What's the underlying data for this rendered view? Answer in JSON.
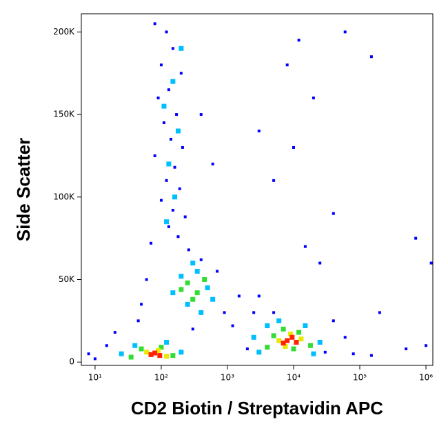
{
  "chart_data": {
    "type": "scatter",
    "x_label": "CD2 Biotin / Streptavidin APC",
    "y_label": "Side Scatter",
    "xscale": "log",
    "xlim": [
      6.2,
      1270000
    ],
    "ylim": [
      -2000,
      211000
    ],
    "xticks": [
      {
        "value": 10,
        "label": "10¹"
      },
      {
        "value": 100,
        "label": "10²"
      },
      {
        "value": 1000,
        "label": "10³"
      },
      {
        "value": 10000,
        "label": "10⁴"
      },
      {
        "value": 100000,
        "label": "10⁵"
      },
      {
        "value": 1000000,
        "label": "10⁶"
      }
    ],
    "yticks": [
      0,
      {
        "value": 50000,
        "label": "50K"
      },
      {
        "value": 100000,
        "label": "100K"
      },
      {
        "value": 150000,
        "label": "150K"
      },
      {
        "value": 200000,
        "label": "200K"
      }
    ],
    "series": [
      {
        "color": "#0000ff",
        "x": [
          80,
          120,
          150,
          100,
          200,
          130,
          90,
          170,
          110,
          140,
          210,
          80,
          160,
          120,
          190,
          100,
          150,
          230,
          130,
          180,
          70,
          260,
          60,
          400,
          700,
          1500,
          2500,
          900,
          50,
          45,
          1200,
          20,
          15,
          8,
          10,
          300,
          2000,
          40000,
          30000,
          60000,
          5000,
          3000,
          8000,
          10000,
          20000,
          5000,
          40000,
          150000,
          200000,
          500000,
          1000000,
          80000,
          3000,
          15000,
          25000,
          60000,
          700000,
          400,
          600,
          12000,
          1200000,
          150000
        ],
        "y": [
          205000,
          200000,
          190000,
          180000,
          175000,
          165000,
          160000,
          150000,
          145000,
          135000,
          130000,
          125000,
          118000,
          110000,
          105000,
          98000,
          92000,
          88000,
          82000,
          76000,
          72000,
          68000,
          50000,
          62000,
          55000,
          40000,
          30000,
          30000,
          35000,
          25000,
          22000,
          18000,
          10000,
          5000,
          2000,
          20000,
          8000,
          25000,
          6000,
          15000,
          30000,
          40000,
          180000,
          130000,
          160000,
          110000,
          90000,
          185000,
          30000,
          8000,
          10000,
          5000,
          140000,
          70000,
          60000,
          200000,
          75000,
          150000,
          120000,
          195000,
          60000,
          4000
        ]
      },
      {
        "color": "#00bfff",
        "x": [
          150,
          110,
          180,
          130,
          160,
          200,
          120,
          200,
          350,
          500,
          250,
          600,
          150,
          400,
          300,
          40,
          120,
          200,
          25,
          2500,
          4000,
          15000,
          25000,
          3000,
          20000,
          6000
        ],
        "y": [
          170000,
          155000,
          140000,
          120000,
          100000,
          190000,
          85000,
          52000,
          55000,
          45000,
          35000,
          38000,
          42000,
          30000,
          60000,
          10000,
          12000,
          6000,
          5000,
          15000,
          22000,
          22000,
          12000,
          6000,
          5000,
          25000
        ]
      },
      {
        "color": "#33dd33",
        "x": [
          250,
          350,
          300,
          200,
          450,
          50,
          100,
          150,
          35,
          5000,
          7000,
          12000,
          18000,
          4000,
          10000
        ],
        "y": [
          48000,
          42000,
          38000,
          44000,
          50000,
          8000,
          9000,
          4000,
          3000,
          16000,
          20000,
          18000,
          10000,
          9000,
          8000
        ]
      },
      {
        "color": "#e8e800",
        "x": [
          60,
          90,
          120,
          6000,
          9000,
          13000,
          7500
        ],
        "y": [
          6000,
          7000,
          3500,
          13000,
          17000,
          14000,
          9500
        ]
      },
      {
        "color": "#ff2200",
        "x": [
          70,
          80,
          95,
          8000,
          9500,
          7000,
          11000
        ],
        "y": [
          4500,
          5500,
          4000,
          13000,
          15000,
          11500,
          12000
        ]
      }
    ]
  }
}
